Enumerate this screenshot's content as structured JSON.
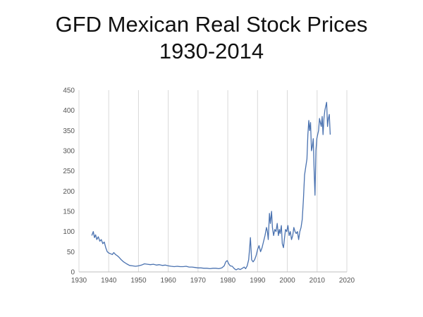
{
  "title_line1": "GFD Mexican Real Stock Prices",
  "title_line2": "1930-2014",
  "chart_data": {
    "type": "line",
    "title": "GFD Mexican Real Stock Prices 1930-2014",
    "xlabel": "",
    "ylabel": "",
    "xlim": [
      1930,
      2020
    ],
    "ylim": [
      0,
      450
    ],
    "x_ticks": [
      "1930",
      "1940",
      "1950",
      "1960",
      "1970",
      "1980",
      "1990",
      "2000",
      "2010",
      "2020"
    ],
    "y_ticks": [
      "0",
      "50",
      "100",
      "150",
      "200",
      "250",
      "300",
      "350",
      "400",
      "450"
    ],
    "grid": "vertical",
    "legend": "none",
    "series": [
      {
        "color": "#4a72b0",
        "x": [
          1934.3,
          1934.8,
          1935.2,
          1935.6,
          1936.0,
          1936.5,
          1937.0,
          1937.5,
          1938.0,
          1938.5,
          1939.0,
          1939.5,
          1940.0,
          1940.6,
          1941.2,
          1941.7,
          1942.3,
          1942.9,
          1943.5,
          1944.2,
          1945.0,
          1946.0,
          1947.0,
          1948.0,
          1949.0,
          1950.0,
          1951.0,
          1952.0,
          1953.0,
          1954.0,
          1955.0,
          1956.0,
          1957.0,
          1958.0,
          1959.0,
          1960.0,
          1961.0,
          1962.0,
          1963.0,
          1964.0,
          1965.0,
          1966.0,
          1967.0,
          1968.0,
          1969.0,
          1970.0,
          1971.0,
          1972.0,
          1973.0,
          1974.0,
          1975.0,
          1976.0,
          1977.0,
          1978.0,
          1978.8,
          1979.3,
          1979.8,
          1980.3,
          1980.8,
          1981.5,
          1982.2,
          1982.8,
          1983.5,
          1984.2,
          1984.9,
          1985.5,
          1986.0,
          1986.5,
          1987.0,
          1987.3,
          1987.6,
          1988.0,
          1988.5,
          1989.0,
          1989.5,
          1990.0,
          1990.5,
          1991.0,
          1991.5,
          1992.0,
          1992.5,
          1993.0,
          1993.3,
          1993.6,
          1994.0,
          1994.3,
          1994.7,
          1995.0,
          1995.4,
          1995.8,
          1996.2,
          1996.6,
          1997.0,
          1997.3,
          1997.6,
          1998.0,
          1998.3,
          1998.7,
          1999.0,
          1999.4,
          1999.8,
          2000.2,
          2000.6,
          2001.0,
          2001.4,
          2001.8,
          2002.2,
          2002.6,
          2003.0,
          2003.4,
          2003.8,
          2004.2,
          2004.6,
          2005.0,
          2005.4,
          2005.8,
          2006.2,
          2006.6,
          2006.9,
          2007.2,
          2007.5,
          2007.8,
          2008.1,
          2008.4,
          2008.7,
          2009.0,
          2009.3,
          2009.6,
          2009.9,
          2010.2,
          2010.5,
          2010.8,
          2011.1,
          2011.4,
          2011.7,
          2012.0,
          2012.3,
          2012.6,
          2012.9,
          2013.2,
          2013.5,
          2013.8,
          2014.1,
          2014.4
        ],
        "y": [
          90,
          100,
          85,
          92,
          80,
          87,
          76,
          80,
          70,
          74,
          60,
          50,
          47,
          45,
          43,
          48,
          43,
          40,
          36,
          30,
          25,
          20,
          16,
          15,
          14,
          15,
          17,
          20,
          19,
          18,
          19,
          17,
          18,
          16,
          17,
          15,
          14,
          13,
          14,
          13,
          13,
          14,
          12,
          12,
          11,
          10,
          10,
          9,
          9,
          8,
          9,
          9,
          8,
          10,
          15,
          25,
          28,
          20,
          15,
          14,
          8,
          5,
          8,
          6,
          9,
          12,
          8,
          15,
          30,
          55,
          85,
          30,
          25,
          30,
          40,
          55,
          65,
          50,
          60,
          75,
          90,
          110,
          100,
          80,
          145,
          120,
          150,
          110,
          90,
          105,
          100,
          120,
          90,
          105,
          95,
          115,
          70,
          60,
          80,
          105,
          100,
          115,
          90,
          100,
          80,
          90,
          110,
          100,
          95,
          100,
          80,
          100,
          110,
          130,
          180,
          240,
          260,
          280,
          340,
          375,
          350,
          370,
          300,
          310,
          330,
          250,
          190,
          300,
          330,
          340,
          350,
          380,
          370,
          360,
          385,
          340,
          380,
          400,
          410,
          420,
          360,
          380,
          390,
          340
        ]
      }
    ]
  }
}
